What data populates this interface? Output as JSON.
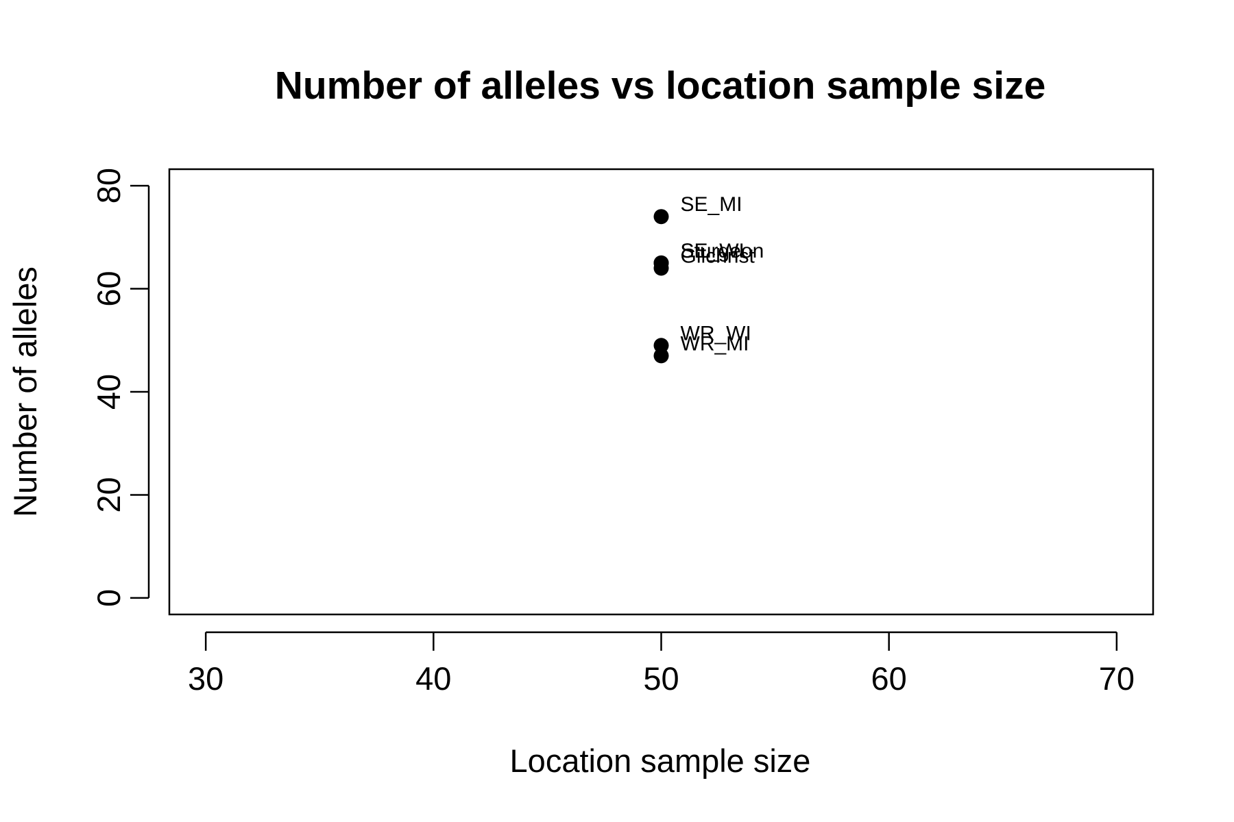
{
  "chart_data": {
    "type": "scatter",
    "title": "Number of alleles vs location sample size",
    "xlabel": "Location sample size",
    "ylabel": "Number of alleles",
    "xlim": [
      28.4,
      71.6
    ],
    "ylim": [
      -3.2,
      83.2
    ],
    "xticks": [
      30,
      40,
      50,
      60,
      70
    ],
    "yticks": [
      0,
      20,
      40,
      60,
      80
    ],
    "grid": false,
    "legend": "none",
    "point_color": "#000000",
    "points": [
      {
        "label": "SE_MI",
        "x": 50,
        "y": 74
      },
      {
        "label": "SE_WI",
        "x": 50,
        "y": 65
      },
      {
        "label": "Sturgeon",
        "x": 50,
        "y": 65
      },
      {
        "label": "Gilchrist",
        "x": 50,
        "y": 64
      },
      {
        "label": "WR_WI",
        "x": 50,
        "y": 49
      },
      {
        "label": "WR_MI",
        "x": 50,
        "y": 47
      }
    ]
  }
}
